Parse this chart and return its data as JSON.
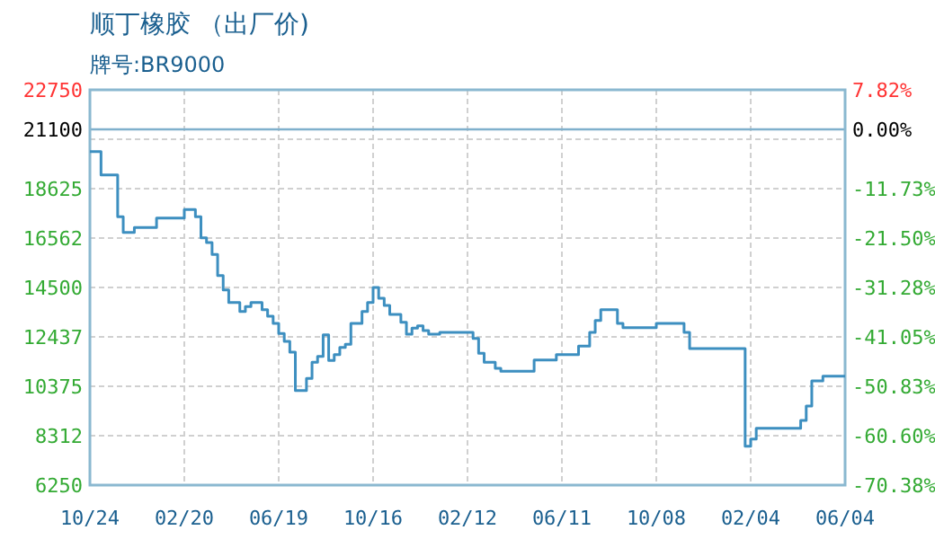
{
  "chart_data": {
    "type": "step",
    "title": "顺丁橡胶 （出厂价)",
    "subtitle": "牌号:BR9000",
    "categories": [
      "10/24",
      null,
      null,
      null,
      null,
      null,
      null,
      null,
      null,
      null,
      null,
      null,
      null,
      null,
      null,
      null,
      null,
      "02/20",
      null,
      null,
      null,
      null,
      null,
      null,
      null,
      null,
      null,
      null,
      null,
      null,
      null,
      null,
      null,
      null,
      "06/19",
      null,
      null,
      null,
      null,
      null,
      null,
      null,
      null,
      null,
      null,
      null,
      null,
      null,
      null,
      null,
      null,
      "10/16",
      null,
      null,
      null,
      null,
      null,
      null,
      null,
      null,
      null,
      null,
      null,
      null,
      null,
      null,
      null,
      null,
      "02/12",
      null,
      null,
      null,
      null,
      null,
      null,
      null,
      null,
      null,
      null,
      null,
      null,
      null,
      null,
      null,
      null,
      "06/11",
      null,
      null,
      null,
      null,
      null,
      null,
      null,
      null,
      null,
      null,
      null,
      null,
      null,
      null,
      null,
      null,
      "10/08",
      null,
      null,
      null,
      null,
      null,
      null,
      null,
      null,
      null,
      null,
      null,
      null,
      null,
      null,
      null,
      null,
      "02/04",
      null,
      null,
      null,
      null,
      null,
      null,
      null,
      null,
      null,
      null,
      null,
      null,
      null,
      null,
      null,
      null,
      "06/04"
    ],
    "series": [
      {
        "color": "#3d8fc0",
        "values": [
          20175,
          20175,
          19200,
          19200,
          19200,
          17450,
          16800,
          16800,
          17000,
          17000,
          17000,
          17000,
          17400,
          17400,
          17400,
          17400,
          17400,
          17750,
          17750,
          17450,
          16575,
          16375,
          15875,
          15000,
          14400,
          13875,
          13875,
          13500,
          13700,
          13875,
          13875,
          13575,
          13300,
          13000,
          12575,
          12250,
          11800,
          10200,
          10200,
          10700,
          11375,
          11625,
          12525,
          11450,
          11700,
          12000,
          12125,
          13000,
          13000,
          13500,
          13875,
          14500,
          14050,
          13750,
          13375,
          13375,
          13050,
          12550,
          12800,
          12900,
          12700,
          12550,
          12550,
          12625,
          12625,
          12625,
          12625,
          12625,
          12625,
          12375,
          11750,
          11375,
          11375,
          11125,
          11000,
          11000,
          11000,
          11000,
          11000,
          11000,
          11475,
          11475,
          11475,
          11475,
          11700,
          11700,
          11700,
          11700,
          12050,
          12050,
          12625,
          13125,
          13575,
          13575,
          13575,
          13000,
          12825,
          12825,
          12825,
          12825,
          12825,
          12825,
          13000,
          13000,
          13000,
          13000,
          13000,
          12625,
          11950,
          11950,
          11950,
          11950,
          11950,
          11950,
          11950,
          11950,
          11950,
          11950,
          7875,
          8175,
          8625,
          8625,
          8625,
          8625,
          8625,
          8625,
          8625,
          8625,
          8950,
          9550,
          10600,
          10600,
          10800,
          10800,
          10800,
          10800,
          10800
        ]
      }
    ],
    "ylim": [
      6250,
      22750
    ],
    "yticks": [
      6250,
      8312,
      10375,
      12437,
      14500,
      16562,
      18625,
      {
        "value": 20687,
        "label": null
      },
      21100,
      22750
    ],
    "y2lim": [
      -70.38,
      7.82
    ],
    "y2ticks": [
      {
        "value": -70.38,
        "label": "-70.38%"
      },
      {
        "value": -60.6,
        "label": "-60.60%"
      },
      {
        "value": -50.83,
        "label": "-50.83%"
      },
      {
        "value": -41.05,
        "label": "-41.05%"
      },
      {
        "value": -31.28,
        "label": "-31.28%"
      },
      {
        "value": -21.5,
        "label": "-21.50%"
      },
      {
        "value": -11.73,
        "label": "-11.73%"
      },
      {
        "value": 0,
        "label": "0.00%"
      },
      {
        "value": 7.82,
        "label": "7.82%"
      }
    ],
    "ref_lines": [
      {
        "axis": "y",
        "value": 21100,
        "color": "#7fb0cc"
      }
    ],
    "grid": true
  }
}
